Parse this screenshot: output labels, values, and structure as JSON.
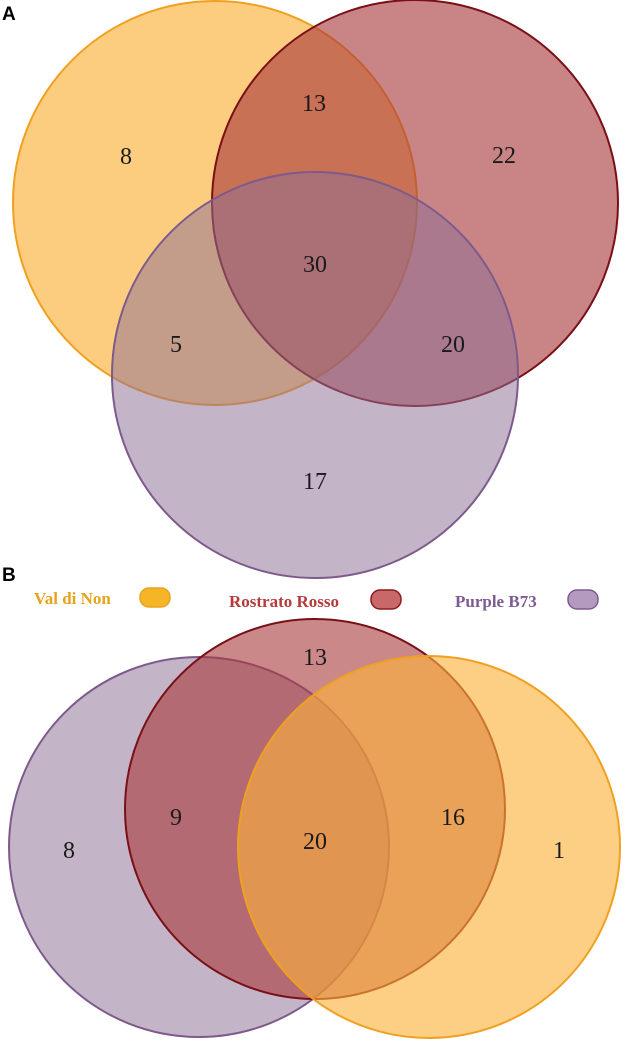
{
  "legend": {
    "items": [
      {
        "label": "Val di Non",
        "color": "#e8a31e",
        "fill": "#f5b526"
      },
      {
        "label": "Rostrato Rosso",
        "color": "#b63a3a",
        "fill": "#c86868"
      },
      {
        "label": "Purple B73",
        "color": "#7e5a93",
        "fill": "#b59ac0"
      }
    ]
  },
  "panels": [
    {
      "letter": "A",
      "regions": {
        "val_only": "8",
        "val_rostrato": "13",
        "rostrato_only": "22",
        "all_three": "30",
        "val_purple": "5",
        "rostrato_purple": "20",
        "purple_only": "17"
      }
    },
    {
      "letter": "B",
      "regions": {
        "rostrato_only": "13",
        "purple_only": "8",
        "purple_rostrato": "9",
        "all_three": "20",
        "rostrato_val": "16",
        "val_only": "1"
      }
    }
  ],
  "colors": {
    "val_fill": "#fcb23a",
    "val_stroke": "#f0a020",
    "rostrato_fill": "#b04a4c",
    "rostrato_stroke": "#7a0f16",
    "purple_fill": "#a08aa6",
    "purple_stroke": "#7e5a8c"
  }
}
